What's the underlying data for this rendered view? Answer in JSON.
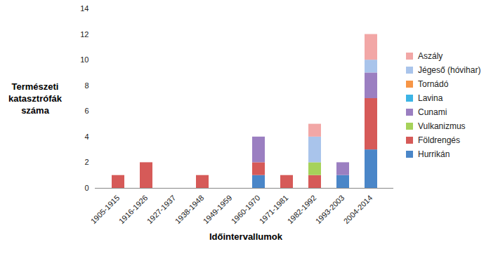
{
  "chart_data": {
    "type": "bar",
    "stacked": true,
    "y_label": "Természeti katasztrófák száma",
    "x_label": "Időintervallumok",
    "categories": [
      "1905-1915",
      "1916-1926",
      "1927-1937",
      "1938-1948",
      "1949-1959",
      "1960-1970",
      "1971-1981",
      "1982-1992",
      "1993-2003",
      "2004-2014"
    ],
    "series": [
      {
        "name": "Hurrikán",
        "color": "#4a86c8",
        "values": [
          0,
          0,
          0,
          0,
          0,
          1,
          0,
          0,
          1,
          3
        ]
      },
      {
        "name": "Földrengés",
        "color": "#d65a58",
        "values": [
          1,
          2,
          0,
          1,
          0,
          1,
          1,
          1,
          0,
          4
        ]
      },
      {
        "name": "Vulkanizmus",
        "color": "#a6d25a",
        "values": [
          0,
          0,
          0,
          0,
          0,
          0,
          0,
          1,
          0,
          0
        ]
      },
      {
        "name": "Cunami",
        "color": "#9b7fc1",
        "values": [
          0,
          0,
          0,
          0,
          0,
          2,
          0,
          0,
          1,
          2
        ]
      },
      {
        "name": "Lavina",
        "color": "#3cb4e5",
        "values": [
          0,
          0,
          0,
          0,
          0,
          0,
          0,
          0,
          0,
          0
        ]
      },
      {
        "name": "Tornádó",
        "color": "#f79646",
        "values": [
          0,
          0,
          0,
          0,
          0,
          0,
          0,
          0,
          0,
          0
        ]
      },
      {
        "name": "Jégeső (hóvihar)",
        "color": "#a9c4eb",
        "values": [
          0,
          0,
          0,
          0,
          0,
          0,
          0,
          2,
          0,
          1
        ]
      },
      {
        "name": "Aszály",
        "color": "#f2a7a6",
        "values": [
          0,
          0,
          0,
          0,
          0,
          0,
          0,
          1,
          0,
          2
        ]
      }
    ],
    "ylim": [
      0,
      14
    ],
    "yticks": [
      0,
      2,
      4,
      6,
      8,
      10,
      12,
      14
    ],
    "grid": false,
    "legend": "right"
  }
}
